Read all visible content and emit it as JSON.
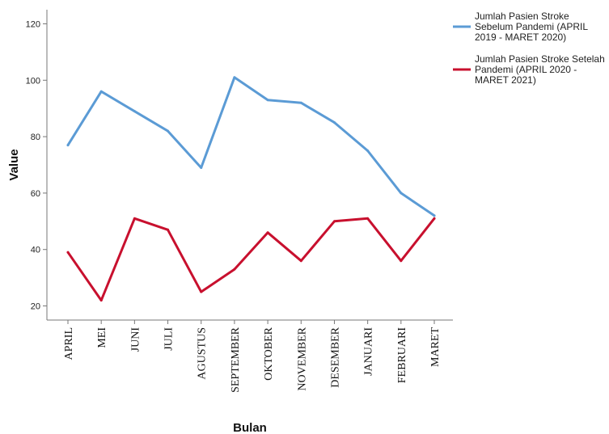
{
  "chart_data": {
    "type": "line",
    "title": "",
    "xlabel": "Bulan",
    "ylabel": "Value",
    "ylim": [
      15,
      125
    ],
    "yticks": [
      20,
      40,
      60,
      80,
      100,
      120
    ],
    "grid": false,
    "legend_position": "top-right",
    "categories": [
      "APRIL",
      "MEI",
      "JUNI",
      "JULI",
      "AGUSTUS",
      "SEPTEMBER",
      "OKTOBER",
      "NOVEMBER",
      "DESEMBER",
      "JANUARI",
      "FEBRUARI",
      "MARET"
    ],
    "series": [
      {
        "name": "Jumlah Pasien Stroke Sebelum Pandemi (APRIL 2019 - MARET 2020)",
        "legend_lines": [
          "Jumlah Pasien Stroke",
          "Sebelum Pandemi (APRIL",
          "2019 - MARET 2020)"
        ],
        "color": "#5b9bd5",
        "values": [
          77,
          96,
          89,
          82,
          69,
          101,
          93,
          92,
          85,
          75,
          60,
          52
        ]
      },
      {
        "name": "Jumlah Pasien Stroke Setelah Pandemi (APRIL 2020 - MARET 2021)",
        "legend_lines": [
          "Jumlah Pasien Stroke Setelah",
          "Pandemi (APRIL 2020 -",
          "MARET 2021)"
        ],
        "color": "#c8102e",
        "values": [
          39,
          22,
          51,
          47,
          25,
          33,
          46,
          36,
          50,
          51,
          36,
          51
        ]
      }
    ]
  }
}
